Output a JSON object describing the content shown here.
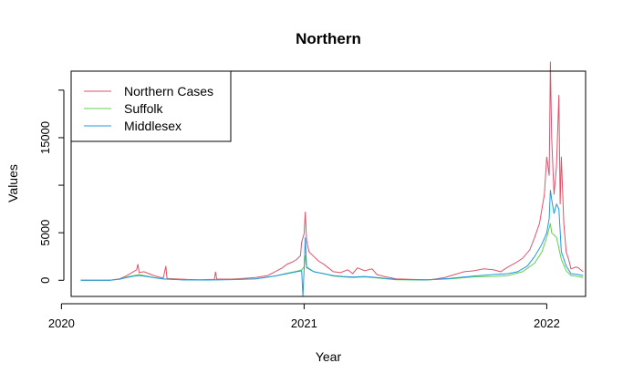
{
  "chart_data": {
    "type": "line",
    "title": "Northern",
    "xlabel": "Year",
    "ylabel": "Values",
    "x_range": [
      2020.04,
      2022.16
    ],
    "y_range": [
      -1700,
      22000
    ],
    "x_ticks": [
      {
        "value": 2020,
        "label": "2020"
      },
      {
        "value": 2021,
        "label": "2021"
      },
      {
        "value": 2022,
        "label": "2022"
      }
    ],
    "y_ticks": [
      {
        "value": 0,
        "label": "0"
      },
      {
        "value": 5000,
        "label": "5000"
      },
      {
        "value": 10000,
        "label": ""
      },
      {
        "value": 15000,
        "label": "15000"
      },
      {
        "value": 20000,
        "label": ""
      }
    ],
    "legend_position": "top-left",
    "series": [
      {
        "name": "Northern Cases",
        "color": "#DF536B",
        "points": [
          [
            2020.08,
            0
          ],
          [
            2020.2,
            0
          ],
          [
            2020.24,
            150
          ],
          [
            2020.27,
            500
          ],
          [
            2020.29,
            800
          ],
          [
            2020.31,
            1100
          ],
          [
            2020.315,
            1700
          ],
          [
            2020.32,
            800
          ],
          [
            2020.34,
            900
          ],
          [
            2020.36,
            700
          ],
          [
            2020.38,
            500
          ],
          [
            2020.4,
            350
          ],
          [
            2020.42,
            250
          ],
          [
            2020.43,
            1500
          ],
          [
            2020.435,
            200
          ],
          [
            2020.47,
            150
          ],
          [
            2020.52,
            80
          ],
          [
            2020.57,
            60
          ],
          [
            2020.63,
            90
          ],
          [
            2020.635,
            900
          ],
          [
            2020.64,
            120
          ],
          [
            2020.7,
            120
          ],
          [
            2020.75,
            200
          ],
          [
            2020.8,
            300
          ],
          [
            2020.85,
            500
          ],
          [
            2020.88,
            900
          ],
          [
            2020.91,
            1300
          ],
          [
            2020.93,
            1700
          ],
          [
            2020.95,
            1900
          ],
          [
            2020.97,
            2200
          ],
          [
            2020.985,
            2600
          ],
          [
            2020.99,
            4000
          ],
          [
            2021.0,
            4900
          ],
          [
            2021.005,
            7200
          ],
          [
            2021.01,
            4200
          ],
          [
            2021.02,
            3000
          ],
          [
            2021.04,
            2500
          ],
          [
            2021.06,
            2000
          ],
          [
            2021.08,
            1700
          ],
          [
            2021.1,
            1300
          ],
          [
            2021.12,
            900
          ],
          [
            2021.15,
            800
          ],
          [
            2021.18,
            1100
          ],
          [
            2021.2,
            700
          ],
          [
            2021.22,
            1300
          ],
          [
            2021.25,
            1000
          ],
          [
            2021.28,
            1200
          ],
          [
            2021.3,
            600
          ],
          [
            2021.33,
            400
          ],
          [
            2021.38,
            150
          ],
          [
            2021.45,
            80
          ],
          [
            2021.52,
            60
          ],
          [
            2021.58,
            300
          ],
          [
            2021.62,
            600
          ],
          [
            2021.66,
            900
          ],
          [
            2021.7,
            1000
          ],
          [
            2021.74,
            1200
          ],
          [
            2021.78,
            1100
          ],
          [
            2021.81,
            900
          ],
          [
            2021.84,
            1400
          ],
          [
            2021.87,
            1800
          ],
          [
            2021.9,
            2300
          ],
          [
            2021.93,
            3200
          ],
          [
            2021.95,
            4500
          ],
          [
            2021.97,
            6000
          ],
          [
            2021.98,
            7500
          ],
          [
            2021.99,
            9000
          ],
          [
            2022.0,
            13000
          ],
          [
            2022.01,
            11000
          ],
          [
            2022.015,
            23000
          ],
          [
            2022.02,
            15000
          ],
          [
            2022.03,
            9000
          ],
          [
            2022.04,
            12000
          ],
          [
            2022.05,
            19500
          ],
          [
            2022.055,
            8000
          ],
          [
            2022.06,
            13000
          ],
          [
            2022.07,
            6000
          ],
          [
            2022.08,
            3000
          ],
          [
            2022.09,
            2200
          ],
          [
            2022.1,
            1200
          ],
          [
            2022.12,
            1400
          ],
          [
            2022.13,
            1300
          ],
          [
            2022.15,
            900
          ]
        ]
      },
      {
        "name": "Suffolk",
        "color": "#61D04F",
        "points": [
          [
            2020.08,
            0
          ],
          [
            2020.2,
            0
          ],
          [
            2020.24,
            100
          ],
          [
            2020.27,
            350
          ],
          [
            2020.3,
            500
          ],
          [
            2020.32,
            600
          ],
          [
            2020.35,
            450
          ],
          [
            2020.38,
            300
          ],
          [
            2020.42,
            150
          ],
          [
            2020.5,
            50
          ],
          [
            2020.6,
            40
          ],
          [
            2020.7,
            80
          ],
          [
            2020.8,
            150
          ],
          [
            2020.88,
            450
          ],
          [
            2020.93,
            750
          ],
          [
            2020.97,
            950
          ],
          [
            2020.99,
            1100
          ],
          [
            2021.0,
            1400
          ],
          [
            2021.005,
            2600
          ],
          [
            2021.01,
            1300
          ],
          [
            2021.04,
            900
          ],
          [
            2021.08,
            700
          ],
          [
            2021.12,
            450
          ],
          [
            2021.16,
            350
          ],
          [
            2021.2,
            300
          ],
          [
            2021.25,
            350
          ],
          [
            2021.3,
            250
          ],
          [
            2021.38,
            60
          ],
          [
            2021.5,
            30
          ],
          [
            2021.6,
            150
          ],
          [
            2021.7,
            350
          ],
          [
            2021.78,
            400
          ],
          [
            2021.84,
            500
          ],
          [
            2021.9,
            900
          ],
          [
            2021.95,
            1800
          ],
          [
            2021.98,
            3000
          ],
          [
            2022.0,
            4500
          ],
          [
            2022.01,
            5500
          ],
          [
            2022.015,
            6000
          ],
          [
            2022.02,
            5000
          ],
          [
            2022.04,
            4500
          ],
          [
            2022.06,
            2200
          ],
          [
            2022.08,
            1000
          ],
          [
            2022.1,
            500
          ],
          [
            2022.13,
            400
          ],
          [
            2022.15,
            300
          ]
        ]
      },
      {
        "name": "Middlesex",
        "color": "#2297E6",
        "points": [
          [
            2020.08,
            0
          ],
          [
            2020.2,
            0
          ],
          [
            2020.24,
            120
          ],
          [
            2020.27,
            300
          ],
          [
            2020.3,
            450
          ],
          [
            2020.32,
            500
          ],
          [
            2020.35,
            400
          ],
          [
            2020.38,
            280
          ],
          [
            2020.42,
            130
          ],
          [
            2020.5,
            40
          ],
          [
            2020.6,
            30
          ],
          [
            2020.7,
            70
          ],
          [
            2020.8,
            150
          ],
          [
            2020.88,
            450
          ],
          [
            2020.93,
            700
          ],
          [
            2020.97,
            900
          ],
          [
            2020.99,
            1000
          ],
          [
            2020.995,
            -1700
          ],
          [
            2021.0,
            1200
          ],
          [
            2021.005,
            4500
          ],
          [
            2021.01,
            1400
          ],
          [
            2021.04,
            900
          ],
          [
            2021.08,
            700
          ],
          [
            2021.12,
            500
          ],
          [
            2021.16,
            400
          ],
          [
            2021.2,
            350
          ],
          [
            2021.25,
            400
          ],
          [
            2021.3,
            300
          ],
          [
            2021.38,
            80
          ],
          [
            2021.5,
            40
          ],
          [
            2021.6,
            200
          ],
          [
            2021.7,
            450
          ],
          [
            2021.78,
            600
          ],
          [
            2021.84,
            700
          ],
          [
            2021.88,
            900
          ],
          [
            2021.92,
            1500
          ],
          [
            2021.95,
            2500
          ],
          [
            2021.98,
            3800
          ],
          [
            2022.0,
            5000
          ],
          [
            2022.01,
            6500
          ],
          [
            2022.015,
            9500
          ],
          [
            2022.02,
            8500
          ],
          [
            2022.03,
            7000
          ],
          [
            2022.04,
            8000
          ],
          [
            2022.05,
            7500
          ],
          [
            2022.06,
            3000
          ],
          [
            2022.08,
            1500
          ],
          [
            2022.1,
            700
          ],
          [
            2022.13,
            600
          ],
          [
            2022.15,
            500
          ]
        ]
      }
    ]
  }
}
